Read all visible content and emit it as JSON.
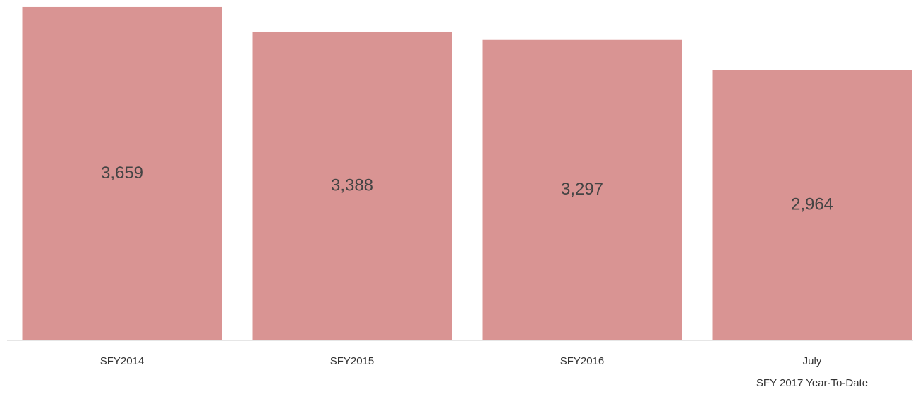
{
  "chart_data": {
    "type": "bar",
    "categories": [
      "SFY2014",
      "SFY2015",
      "SFY2016",
      "July\nSFY 2017 Year-To-Date"
    ],
    "values": [
      3659,
      3388,
      3297,
      2964
    ],
    "value_labels": [
      "3,659",
      "3,388",
      "3,297",
      "2,964"
    ],
    "color": "#d99493",
    "ylim": [
      0,
      3736
    ]
  }
}
